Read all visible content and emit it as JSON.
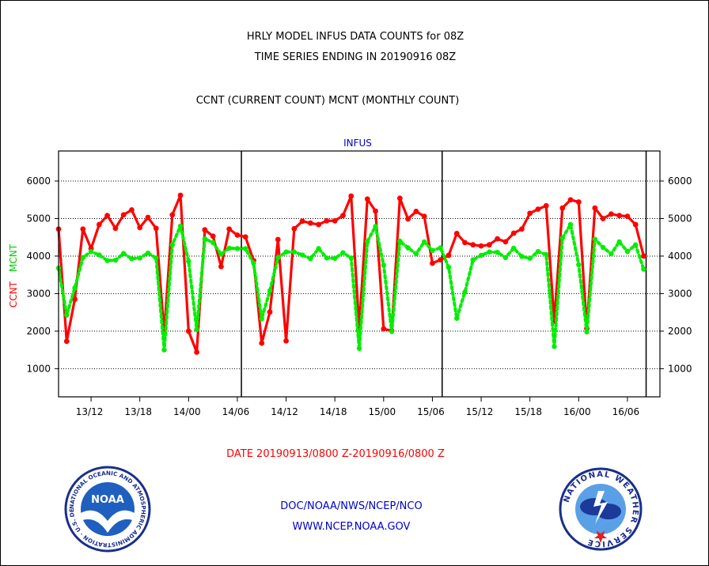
{
  "header": {
    "title_line1": "HRLY MODEL INFUS DATA COUNTS for 08Z",
    "title_line2": "TIME SERIES ENDING IN 20190916 08Z",
    "title_line3": "CCNT (CURRENT COUNT) MCNT (MONTHLY COUNT)"
  },
  "footer": {
    "date_range": "DATE 20190913/0800 Z-20190916/0800 Z",
    "agency": "DOC/NOAA/NWS/NCEP/NCO",
    "website": "WWW.NCEP.NOAA.GOV"
  },
  "logos": {
    "noaa_text": "NOAA",
    "noaa_ring": "NATIONAL OCEANIC AND ATMOSPHERIC ADMINISTRATION · U.S. DEPARTMENT OF COMMERCE ·",
    "nws_ring": "NATIONAL WEATHER SERVICE"
  },
  "chart_data": {
    "type": "line",
    "title": "INFUS",
    "ylabel_ccnt": "CCNT",
    "ylabel_mcnt": "MCNT",
    "ylim": [
      250,
      6800
    ],
    "yticks": [
      1000,
      2000,
      3000,
      4000,
      5000,
      6000
    ],
    "xlim": [
      0,
      74
    ],
    "xticks": [
      {
        "x": 4,
        "label": "13/12"
      },
      {
        "x": 10,
        "label": "13/18"
      },
      {
        "x": 16,
        "label": "14/00"
      },
      {
        "x": 22,
        "label": "14/06"
      },
      {
        "x": 28,
        "label": "14/12"
      },
      {
        "x": 34,
        "label": "14/18"
      },
      {
        "x": 40,
        "label": "15/00"
      },
      {
        "x": 46,
        "label": "15/06"
      },
      {
        "x": 52,
        "label": "15/12"
      },
      {
        "x": 58,
        "label": "15/18"
      },
      {
        "x": 64,
        "label": "16/00"
      },
      {
        "x": 70,
        "label": "16/06"
      }
    ],
    "day_boundaries": [
      22.5,
      47.2,
      72.3
    ],
    "grid": true,
    "colors": {
      "ccnt": "#ff0000",
      "mcnt": "#00ee00",
      "axis_title": "#0000cc"
    },
    "series": [
      {
        "name": "CCNT",
        "style": "solid",
        "values": [
          [
            0,
            4720
          ],
          [
            1,
            1730
          ],
          [
            2,
            2850
          ],
          [
            3,
            4720
          ],
          [
            4,
            4200
          ],
          [
            5,
            4840
          ],
          [
            6,
            5080
          ],
          [
            7,
            4740
          ],
          [
            8,
            5100
          ],
          [
            9,
            5230
          ],
          [
            10,
            4760
          ],
          [
            11,
            5030
          ],
          [
            12,
            4740
          ],
          [
            13,
            1950
          ],
          [
            14,
            5100
          ],
          [
            15,
            5620
          ],
          [
            16,
            2000
          ],
          [
            17,
            1440
          ],
          [
            18,
            4700
          ],
          [
            19,
            4530
          ],
          [
            20,
            3720
          ],
          [
            21,
            4720
          ],
          [
            22,
            4560
          ],
          [
            23,
            4510
          ],
          [
            24,
            3880
          ],
          [
            25,
            1680
          ],
          [
            26,
            2510
          ],
          [
            27,
            4440
          ],
          [
            28,
            1740
          ],
          [
            29,
            4730
          ],
          [
            30,
            4930
          ],
          [
            31,
            4880
          ],
          [
            32,
            4840
          ],
          [
            33,
            4940
          ],
          [
            34,
            4940
          ],
          [
            35,
            5080
          ],
          [
            36,
            5600
          ],
          [
            37,
            2080
          ],
          [
            38,
            5520
          ],
          [
            39,
            5200
          ],
          [
            40,
            2060
          ],
          [
            41,
            2010
          ],
          [
            42,
            5540
          ],
          [
            43,
            4990
          ],
          [
            44,
            5190
          ],
          [
            45,
            5060
          ],
          [
            46,
            3810
          ],
          [
            47,
            3900
          ],
          [
            48,
            4020
          ],
          [
            49,
            4600
          ],
          [
            50,
            4360
          ],
          [
            51,
            4300
          ],
          [
            52,
            4270
          ],
          [
            53,
            4300
          ],
          [
            54,
            4460
          ],
          [
            55,
            4380
          ],
          [
            56,
            4610
          ],
          [
            57,
            4720
          ],
          [
            58,
            5140
          ],
          [
            59,
            5250
          ],
          [
            60,
            5340
          ],
          [
            61,
            2260
          ],
          [
            62,
            5280
          ],
          [
            63,
            5500
          ],
          [
            64,
            5440
          ],
          [
            65,
            2070
          ],
          [
            66,
            5280
          ],
          [
            67,
            5000
          ],
          [
            68,
            5120
          ],
          [
            69,
            5080
          ],
          [
            70,
            5060
          ],
          [
            71,
            4840
          ],
          [
            72,
            4000
          ]
        ]
      },
      {
        "name": "MCNT",
        "style": "dotted",
        "values": [
          [
            0,
            3680
          ],
          [
            1,
            2430
          ],
          [
            2,
            3150
          ],
          [
            3,
            3960
          ],
          [
            4,
            4120
          ],
          [
            5,
            4030
          ],
          [
            6,
            3880
          ],
          [
            7,
            3890
          ],
          [
            8,
            4070
          ],
          [
            9,
            3930
          ],
          [
            10,
            3950
          ],
          [
            11,
            4080
          ],
          [
            12,
            3950
          ],
          [
            13,
            1500
          ],
          [
            14,
            4300
          ],
          [
            15,
            4800
          ],
          [
            16,
            3860
          ],
          [
            17,
            2040
          ],
          [
            18,
            4460
          ],
          [
            19,
            4360
          ],
          [
            20,
            4050
          ],
          [
            21,
            4210
          ],
          [
            22,
            4200
          ],
          [
            23,
            4200
          ],
          [
            24,
            3810
          ],
          [
            25,
            2330
          ],
          [
            26,
            3080
          ],
          [
            27,
            3960
          ],
          [
            28,
            4110
          ],
          [
            29,
            4110
          ],
          [
            30,
            4030
          ],
          [
            31,
            3930
          ],
          [
            32,
            4200
          ],
          [
            33,
            3950
          ],
          [
            34,
            3940
          ],
          [
            35,
            4090
          ],
          [
            36,
            3950
          ],
          [
            37,
            1540
          ],
          [
            38,
            4390
          ],
          [
            39,
            4790
          ],
          [
            40,
            3760
          ],
          [
            41,
            1990
          ],
          [
            42,
            4400
          ],
          [
            43,
            4220
          ],
          [
            44,
            4060
          ],
          [
            45,
            4380
          ],
          [
            46,
            4150
          ],
          [
            47,
            4220
          ],
          [
            48,
            3700
          ],
          [
            49,
            2340
          ],
          [
            50,
            3040
          ],
          [
            51,
            3900
          ],
          [
            52,
            4020
          ],
          [
            53,
            4110
          ],
          [
            54,
            4100
          ],
          [
            55,
            3960
          ],
          [
            56,
            4210
          ],
          [
            57,
            3990
          ],
          [
            58,
            3940
          ],
          [
            59,
            4120
          ],
          [
            60,
            4040
          ],
          [
            61,
            1590
          ],
          [
            62,
            4480
          ],
          [
            63,
            4840
          ],
          [
            64,
            3770
          ],
          [
            65,
            1980
          ],
          [
            66,
            4450
          ],
          [
            67,
            4230
          ],
          [
            68,
            4060
          ],
          [
            69,
            4380
          ],
          [
            70,
            4120
          ],
          [
            71,
            4300
          ],
          [
            72,
            3650
          ]
        ]
      }
    ]
  }
}
